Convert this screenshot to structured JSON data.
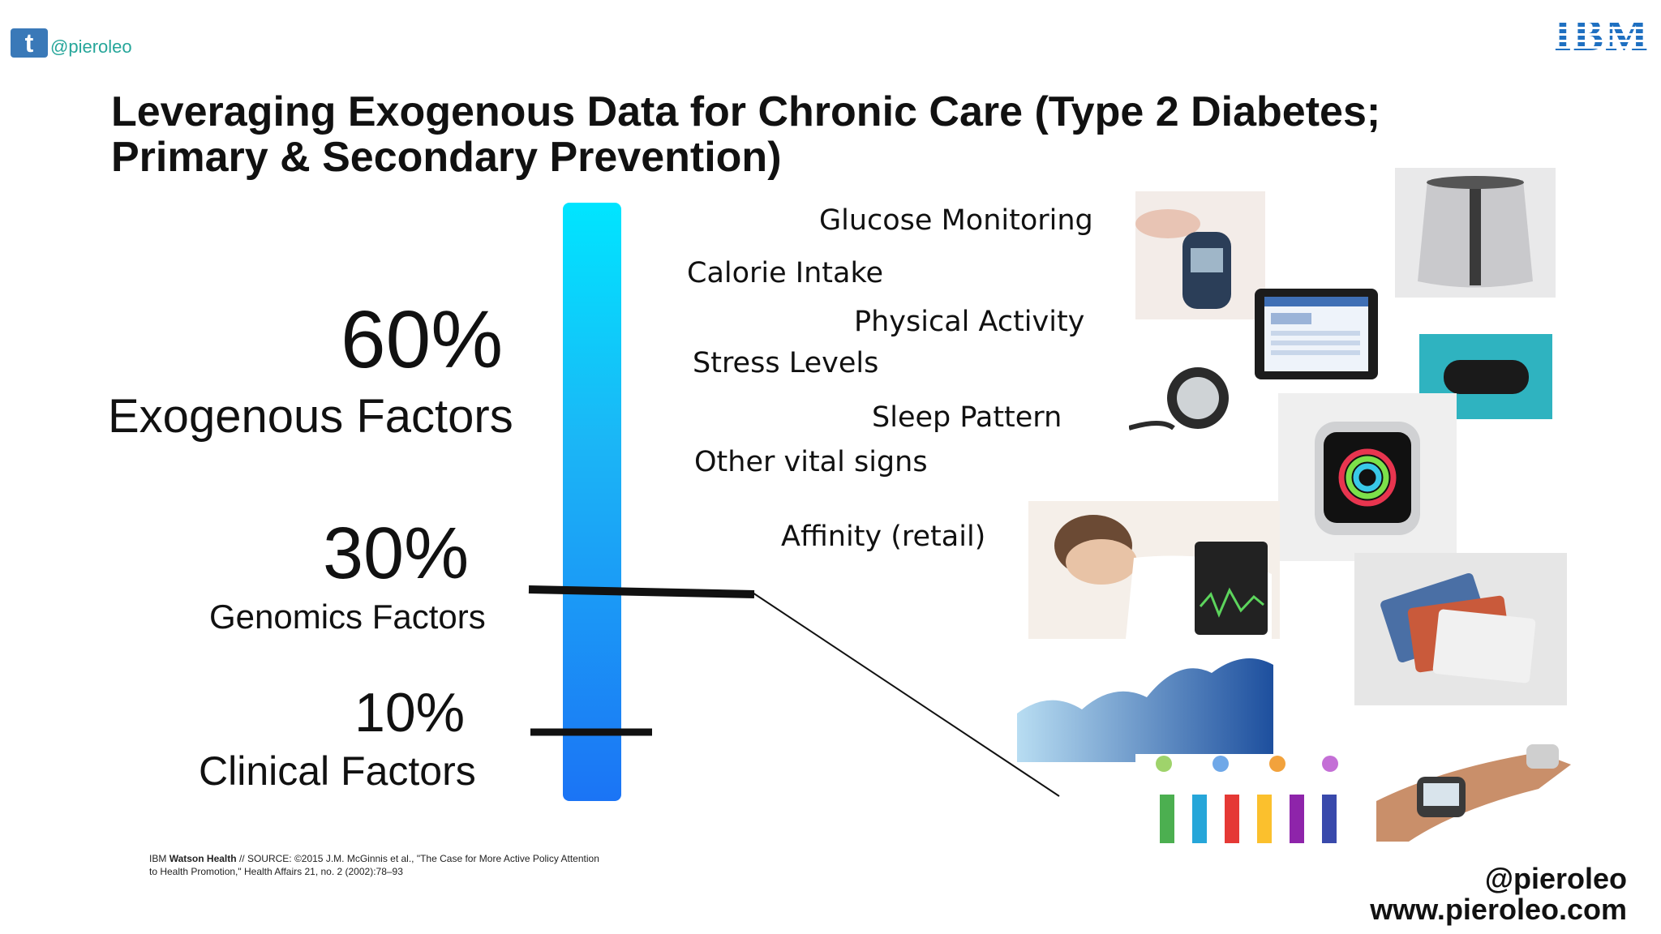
{
  "header": {
    "twitter_icon": "twitter-icon",
    "twitter_glyph": "t",
    "twitter_handle": "@pieroleo",
    "logo_text": "IBM"
  },
  "title": "Leveraging Exogenous Data for Chronic Care (Type 2 Diabetes; Primary & Secondary Prevention)",
  "factors": [
    {
      "percent": "60%",
      "label": "Exogenous Factors"
    },
    {
      "percent": "30%",
      "label": "Genomics Factors"
    },
    {
      "percent": "10%",
      "label": "Clinical Factors"
    }
  ],
  "data_streams": [
    "Glucose Monitoring",
    "Calorie Intake",
    "Physical Activity",
    "Stress Levels",
    "Sleep Pattern",
    "Other vital signs",
    "Affinity (retail)"
  ],
  "source": {
    "brand_prefix": "IBM",
    "brand_bold": "Watson Health",
    "text": "// SOURCE: ©2015 J.M. McGinnis et al., \"The Case for More Active Policy Attention to Health Promotion,\" Health Affairs 21, no. 2 (2002):78–93"
  },
  "footer": {
    "handle": "@pieroleo",
    "website": "www.pieroleo.com"
  },
  "colors": {
    "bar_top": "#00e5ff",
    "bar_bottom": "#1b74f5",
    "ibm_blue": "#1f70c1",
    "twitter_blue": "#3a79b8",
    "handle_teal": "#26a69a"
  }
}
